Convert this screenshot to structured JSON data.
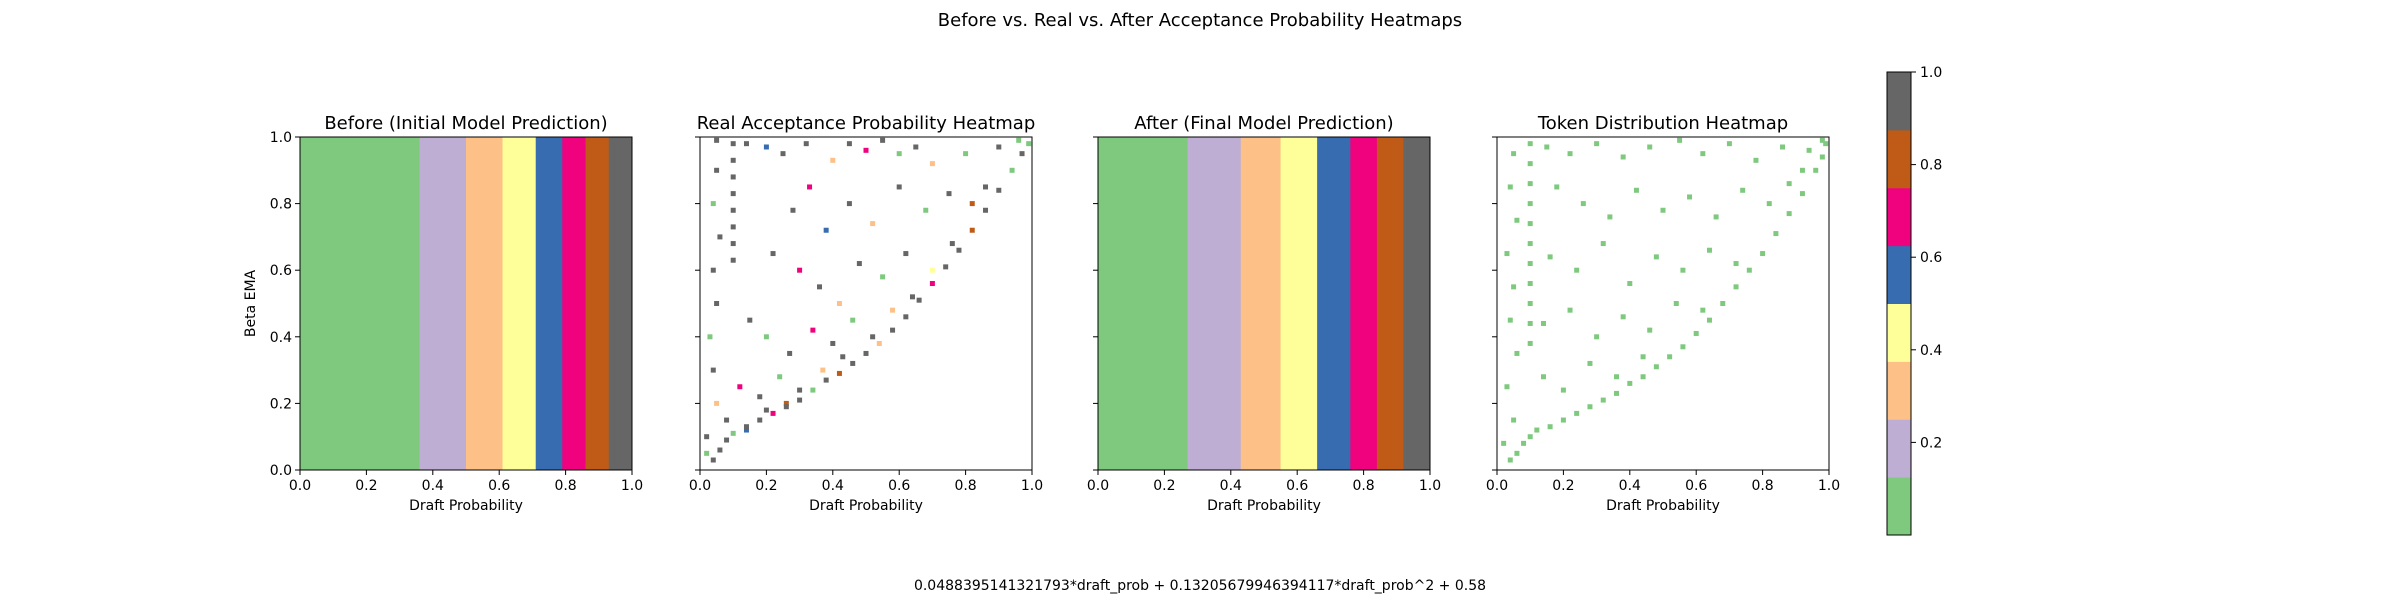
{
  "figure": {
    "suptitle": "Before vs. Real vs. After Acceptance Probability Heatmaps",
    "formula": "0.0488395141321793*draft_prob + 0.13205679946394117*draft_prob^2 + 0.58"
  },
  "colormap": {
    "name": "Accent",
    "colors": [
      "#7fc97f",
      "#beaed4",
      "#fdc086",
      "#ffff99",
      "#386cb0",
      "#f0027f",
      "#bf5b17",
      "#666666"
    ],
    "colorbar_ticks": [
      "0.2",
      "0.4",
      "0.6",
      "0.8",
      "1.0"
    ],
    "colorbar_tick_values": [
      0.2,
      0.4,
      0.6,
      0.8,
      1.0
    ],
    "range": [
      0.0,
      1.0
    ]
  },
  "chart_data": [
    {
      "type": "heatmap",
      "title": "Before (Initial Model Prediction)",
      "xlabel": "Draft Probability",
      "ylabel": "Beta EMA",
      "xlim": [
        0,
        1
      ],
      "ylim": [
        0,
        1
      ],
      "xticks": [
        "0.0",
        "0.2",
        "0.4",
        "0.6",
        "0.8",
        "1.0"
      ],
      "yticks": [
        "0.0",
        "0.2",
        "0.4",
        "0.6",
        "0.8",
        "1.0"
      ],
      "bands": [
        {
          "x_from": 0.0,
          "x_to": 0.36,
          "color": "#7fc97f"
        },
        {
          "x_from": 0.36,
          "x_to": 0.5,
          "color": "#beaed4"
        },
        {
          "x_from": 0.5,
          "x_to": 0.61,
          "color": "#fdc086"
        },
        {
          "x_from": 0.61,
          "x_to": 0.71,
          "color": "#ffff99"
        },
        {
          "x_from": 0.71,
          "x_to": 0.79,
          "color": "#386cb0"
        },
        {
          "x_from": 0.79,
          "x_to": 0.86,
          "color": "#f0027f"
        },
        {
          "x_from": 0.86,
          "x_to": 0.93,
          "color": "#bf5b17"
        },
        {
          "x_from": 0.93,
          "x_to": 1.0,
          "color": "#666666"
        }
      ]
    },
    {
      "type": "heatmap",
      "title": "Real Acceptance Probability Heatmap",
      "xlabel": "Draft Probability",
      "ylabel": "",
      "xlim": [
        0,
        1
      ],
      "ylim": [
        0,
        1
      ],
      "xticks": [
        "0.0",
        "0.2",
        "0.4",
        "0.6",
        "0.8",
        "1.0"
      ],
      "yticks": [
        "",
        "",
        "",
        "",
        "",
        ""
      ],
      "cells": [
        [
          0.1,
          0.98,
          7
        ],
        [
          0.1,
          0.93,
          7
        ],
        [
          0.1,
          0.88,
          7
        ],
        [
          0.1,
          0.83,
          7
        ],
        [
          0.1,
          0.78,
          7
        ],
        [
          0.1,
          0.73,
          7
        ],
        [
          0.1,
          0.68,
          7
        ],
        [
          0.1,
          0.63,
          7
        ],
        [
          0.05,
          0.99,
          7
        ],
        [
          0.05,
          0.9,
          7
        ],
        [
          0.04,
          0.8,
          0
        ],
        [
          0.06,
          0.7,
          7
        ],
        [
          0.04,
          0.6,
          7
        ],
        [
          0.05,
          0.5,
          7
        ],
        [
          0.03,
          0.4,
          0
        ],
        [
          0.04,
          0.3,
          7
        ],
        [
          0.05,
          0.2,
          2
        ],
        [
          0.02,
          0.1,
          7
        ],
        [
          0.02,
          0.05,
          0
        ],
        [
          0.14,
          0.98,
          7
        ],
        [
          0.2,
          0.97,
          4
        ],
        [
          0.25,
          0.95,
          7
        ],
        [
          0.32,
          0.98,
          7
        ],
        [
          0.4,
          0.93,
          2
        ],
        [
          0.45,
          0.98,
          7
        ],
        [
          0.5,
          0.96,
          5
        ],
        [
          0.55,
          0.99,
          7
        ],
        [
          0.6,
          0.95,
          0
        ],
        [
          0.65,
          0.97,
          7
        ],
        [
          0.7,
          0.92,
          2
        ],
        [
          0.8,
          0.95,
          0
        ],
        [
          0.9,
          0.97,
          7
        ],
        [
          0.96,
          0.99,
          0
        ],
        [
          0.33,
          0.85,
          5
        ],
        [
          0.28,
          0.78,
          7
        ],
        [
          0.38,
          0.72,
          4
        ],
        [
          0.45,
          0.8,
          7
        ],
        [
          0.52,
          0.74,
          2
        ],
        [
          0.6,
          0.85,
          7
        ],
        [
          0.68,
          0.78,
          0
        ],
        [
          0.75,
          0.83,
          7
        ],
        [
          0.82,
          0.8,
          6
        ],
        [
          0.86,
          0.85,
          7
        ],
        [
          0.22,
          0.65,
          7
        ],
        [
          0.3,
          0.6,
          5
        ],
        [
          0.36,
          0.55,
          7
        ],
        [
          0.42,
          0.5,
          2
        ],
        [
          0.48,
          0.62,
          7
        ],
        [
          0.55,
          0.58,
          0
        ],
        [
          0.62,
          0.65,
          7
        ],
        [
          0.7,
          0.6,
          3
        ],
        [
          0.76,
          0.68,
          7
        ],
        [
          0.15,
          0.45,
          7
        ],
        [
          0.2,
          0.4,
          0
        ],
        [
          0.27,
          0.35,
          7
        ],
        [
          0.34,
          0.42,
          5
        ],
        [
          0.4,
          0.38,
          7
        ],
        [
          0.46,
          0.45,
          0
        ],
        [
          0.52,
          0.4,
          7
        ],
        [
          0.58,
          0.48,
          2
        ],
        [
          0.64,
          0.52,
          7
        ],
        [
          0.12,
          0.25,
          5
        ],
        [
          0.18,
          0.22,
          7
        ],
        [
          0.24,
          0.28,
          0
        ],
        [
          0.3,
          0.24,
          7
        ],
        [
          0.37,
          0.3,
          2
        ],
        [
          0.43,
          0.34,
          7
        ],
        [
          0.08,
          0.15,
          7
        ],
        [
          0.14,
          0.12,
          4
        ],
        [
          0.2,
          0.18,
          7
        ],
        [
          0.26,
          0.2,
          6
        ],
        [
          0.04,
          0.03,
          7
        ],
        [
          0.06,
          0.06,
          7
        ],
        [
          0.08,
          0.09,
          7
        ],
        [
          0.1,
          0.11,
          0
        ],
        [
          0.14,
          0.13,
          7
        ],
        [
          0.18,
          0.15,
          7
        ],
        [
          0.22,
          0.17,
          5
        ],
        [
          0.26,
          0.19,
          7
        ],
        [
          0.3,
          0.21,
          7
        ],
        [
          0.34,
          0.24,
          0
        ],
        [
          0.38,
          0.27,
          7
        ],
        [
          0.42,
          0.29,
          6
        ],
        [
          0.46,
          0.32,
          7
        ],
        [
          0.5,
          0.35,
          7
        ],
        [
          0.54,
          0.38,
          2
        ],
        [
          0.58,
          0.42,
          7
        ],
        [
          0.62,
          0.46,
          7
        ],
        [
          0.66,
          0.51,
          7
        ],
        [
          0.7,
          0.56,
          5
        ],
        [
          0.74,
          0.61,
          7
        ],
        [
          0.78,
          0.66,
          7
        ],
        [
          0.82,
          0.72,
          6
        ],
        [
          0.86,
          0.78,
          7
        ],
        [
          0.9,
          0.84,
          7
        ],
        [
          0.94,
          0.9,
          0
        ],
        [
          0.97,
          0.95,
          7
        ],
        [
          0.99,
          0.98,
          0
        ]
      ]
    },
    {
      "type": "heatmap",
      "title": "After (Final Model Prediction)",
      "xlabel": "Draft Probability",
      "ylabel": "",
      "xlim": [
        0,
        1
      ],
      "ylim": [
        0,
        1
      ],
      "xticks": [
        "0.0",
        "0.2",
        "0.4",
        "0.6",
        "0.8",
        "1.0"
      ],
      "yticks": [
        "",
        "",
        "",
        "",
        "",
        ""
      ],
      "bands": [
        {
          "x_from": 0.0,
          "x_to": 0.27,
          "color": "#7fc97f"
        },
        {
          "x_from": 0.27,
          "x_to": 0.43,
          "color": "#beaed4"
        },
        {
          "x_from": 0.43,
          "x_to": 0.55,
          "color": "#fdc086"
        },
        {
          "x_from": 0.55,
          "x_to": 0.66,
          "color": "#ffff99"
        },
        {
          "x_from": 0.66,
          "x_to": 0.76,
          "color": "#386cb0"
        },
        {
          "x_from": 0.76,
          "x_to": 0.84,
          "color": "#f0027f"
        },
        {
          "x_from": 0.84,
          "x_to": 0.92,
          "color": "#bf5b17"
        },
        {
          "x_from": 0.92,
          "x_to": 1.0,
          "color": "#666666"
        }
      ]
    },
    {
      "type": "heatmap",
      "title": "Token Distribution Heatmap",
      "xlabel": "Draft Probability",
      "ylabel": "",
      "xlim": [
        0,
        1
      ],
      "ylim": [
        0,
        1
      ],
      "xticks": [
        "0.0",
        "0.2",
        "0.4",
        "0.6",
        "0.8",
        "1.0"
      ],
      "yticks": [
        "",
        "",
        "",
        "",
        "",
        ""
      ],
      "cells": [
        [
          0.1,
          0.98,
          0
        ],
        [
          0.1,
          0.92,
          0
        ],
        [
          0.1,
          0.86,
          0
        ],
        [
          0.1,
          0.8,
          0
        ],
        [
          0.1,
          0.74,
          0
        ],
        [
          0.1,
          0.68,
          0
        ],
        [
          0.1,
          0.62,
          0
        ],
        [
          0.1,
          0.56,
          0
        ],
        [
          0.1,
          0.5,
          0
        ],
        [
          0.1,
          0.44,
          0
        ],
        [
          0.1,
          0.38,
          0
        ],
        [
          0.05,
          0.95,
          0
        ],
        [
          0.04,
          0.85,
          0
        ],
        [
          0.06,
          0.75,
          0
        ],
        [
          0.03,
          0.65,
          0
        ],
        [
          0.05,
          0.55,
          0
        ],
        [
          0.04,
          0.45,
          0
        ],
        [
          0.06,
          0.35,
          0
        ],
        [
          0.03,
          0.25,
          0
        ],
        [
          0.05,
          0.15,
          0
        ],
        [
          0.02,
          0.08,
          0
        ],
        [
          0.15,
          0.97,
          0
        ],
        [
          0.22,
          0.95,
          0
        ],
        [
          0.3,
          0.98,
          0
        ],
        [
          0.38,
          0.94,
          0
        ],
        [
          0.46,
          0.97,
          0
        ],
        [
          0.55,
          0.99,
          0
        ],
        [
          0.62,
          0.95,
          0
        ],
        [
          0.7,
          0.98,
          0
        ],
        [
          0.78,
          0.93,
          0
        ],
        [
          0.86,
          0.97,
          0
        ],
        [
          0.94,
          0.96,
          0
        ],
        [
          0.98,
          0.99,
          0
        ],
        [
          0.18,
          0.85,
          0
        ],
        [
          0.26,
          0.8,
          0
        ],
        [
          0.34,
          0.76,
          0
        ],
        [
          0.42,
          0.84,
          0
        ],
        [
          0.5,
          0.78,
          0
        ],
        [
          0.58,
          0.82,
          0
        ],
        [
          0.66,
          0.76,
          0
        ],
        [
          0.74,
          0.84,
          0
        ],
        [
          0.82,
          0.8,
          0
        ],
        [
          0.88,
          0.86,
          0
        ],
        [
          0.92,
          0.9,
          0
        ],
        [
          0.16,
          0.64,
          0
        ],
        [
          0.24,
          0.6,
          0
        ],
        [
          0.32,
          0.68,
          0
        ],
        [
          0.4,
          0.56,
          0
        ],
        [
          0.48,
          0.64,
          0
        ],
        [
          0.56,
          0.6,
          0
        ],
        [
          0.64,
          0.66,
          0
        ],
        [
          0.72,
          0.62,
          0
        ],
        [
          0.14,
          0.44,
          0
        ],
        [
          0.22,
          0.48,
          0
        ],
        [
          0.3,
          0.4,
          0
        ],
        [
          0.38,
          0.46,
          0
        ],
        [
          0.46,
          0.42,
          0
        ],
        [
          0.54,
          0.5,
          0
        ],
        [
          0.62,
          0.48,
          0
        ],
        [
          0.14,
          0.28,
          0
        ],
        [
          0.2,
          0.24,
          0
        ],
        [
          0.28,
          0.32,
          0
        ],
        [
          0.36,
          0.28,
          0
        ],
        [
          0.44,
          0.34,
          0
        ],
        [
          0.04,
          0.03,
          0
        ],
        [
          0.06,
          0.05,
          0
        ],
        [
          0.08,
          0.08,
          0
        ],
        [
          0.1,
          0.1,
          0
        ],
        [
          0.12,
          0.12,
          0
        ],
        [
          0.16,
          0.13,
          0
        ],
        [
          0.2,
          0.15,
          0
        ],
        [
          0.24,
          0.17,
          0
        ],
        [
          0.28,
          0.19,
          0
        ],
        [
          0.32,
          0.21,
          0
        ],
        [
          0.36,
          0.23,
          0
        ],
        [
          0.4,
          0.26,
          0
        ],
        [
          0.44,
          0.28,
          0
        ],
        [
          0.48,
          0.31,
          0
        ],
        [
          0.52,
          0.34,
          0
        ],
        [
          0.56,
          0.37,
          0
        ],
        [
          0.6,
          0.41,
          0
        ],
        [
          0.64,
          0.45,
          0
        ],
        [
          0.68,
          0.5,
          0
        ],
        [
          0.72,
          0.55,
          0
        ],
        [
          0.76,
          0.6,
          0
        ],
        [
          0.8,
          0.65,
          0
        ],
        [
          0.84,
          0.71,
          0
        ],
        [
          0.88,
          0.77,
          0
        ],
        [
          0.92,
          0.83,
          0
        ],
        [
          0.96,
          0.9,
          0
        ],
        [
          0.98,
          0.94,
          0
        ],
        [
          0.99,
          0.98,
          0
        ]
      ]
    }
  ]
}
